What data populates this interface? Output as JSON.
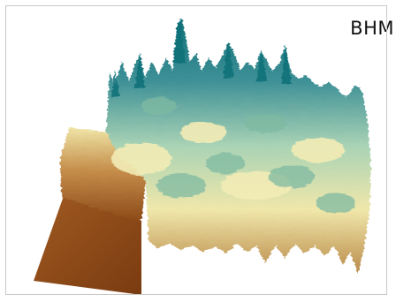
{
  "figure": {
    "label": "BHM"
  },
  "colors": {
    "low": "#8b4513",
    "mid_low": "#c99a55",
    "mid": "#f2eab0",
    "mid_high": "#8fc3a6",
    "high": "#0f6f78"
  }
}
